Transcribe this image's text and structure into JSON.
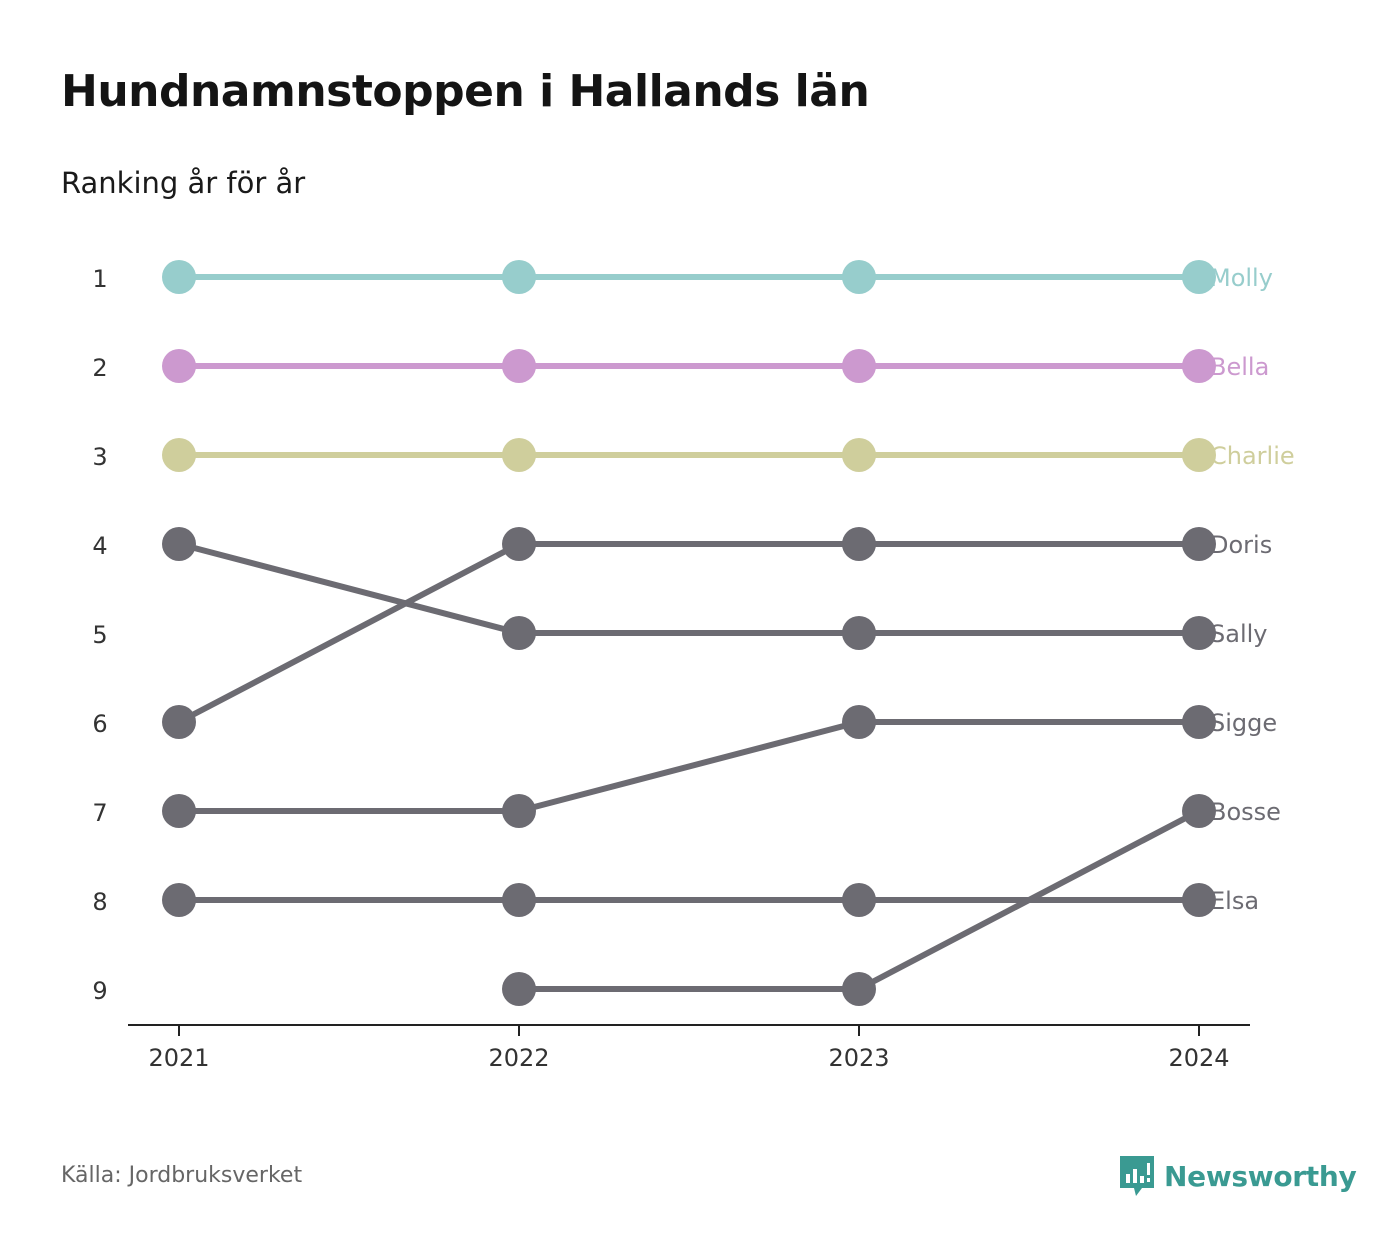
{
  "header": {
    "title": "Hundnamnstoppen i Hallands län",
    "subtitle": "Ranking år för år"
  },
  "footer": {
    "source": "Källa: Jordbruksverket",
    "brand": "Newsworthy",
    "brand_color": "#3a9a92"
  },
  "chart_data": {
    "type": "line",
    "title": "Hundnamnstoppen i Hallands län",
    "subtitle": "Ranking år för år",
    "x": [
      "2021",
      "2022",
      "2023",
      "2024"
    ],
    "y_ticks": [
      1,
      2,
      3,
      4,
      5,
      6,
      7,
      8,
      9
    ],
    "y_reversed": true,
    "grid": false,
    "series": [
      {
        "name": "Molly",
        "values": [
          1,
          1,
          1,
          1
        ],
        "color": "#97cdcc"
      },
      {
        "name": "Bella",
        "values": [
          2,
          2,
          2,
          2
        ],
        "color": "#cc99cf"
      },
      {
        "name": "Charlie",
        "values": [
          3,
          3,
          3,
          3
        ],
        "color": "#cfce9c"
      },
      {
        "name": "Doris",
        "values": [
          6,
          4,
          4,
          4
        ],
        "color": "#6c6b72"
      },
      {
        "name": "Sally",
        "values": [
          4,
          5,
          5,
          5
        ],
        "color": "#6c6b72"
      },
      {
        "name": "Sigge",
        "values": [
          7,
          7,
          6,
          6
        ],
        "color": "#6c6b72"
      },
      {
        "name": "Bosse",
        "values": [
          null,
          9,
          9,
          7
        ],
        "color": "#6c6b72"
      },
      {
        "name": "Elsa",
        "values": [
          8,
          8,
          8,
          8
        ],
        "color": "#6c6b72"
      }
    ]
  }
}
